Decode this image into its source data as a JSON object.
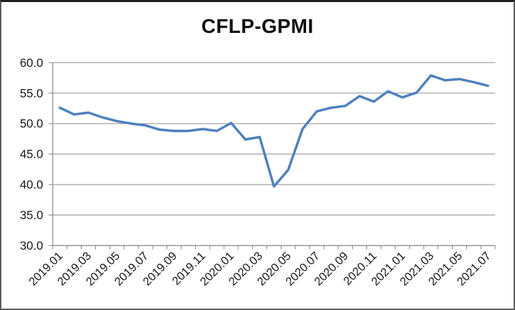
{
  "chart_data": {
    "type": "line",
    "title": "CFLP-GPMI",
    "xlabel": "",
    "ylabel": "",
    "ylim": [
      30,
      60
    ],
    "y_tick_step": 5,
    "y_tick_labels": [
      "60.0",
      "55.0",
      "50.0",
      "45.0",
      "40.0",
      "35.0",
      "30.0"
    ],
    "x": [
      "2019.01",
      "2019.02",
      "2019.03",
      "2019.04",
      "2019.05",
      "2019.06",
      "2019.07",
      "2019.08",
      "2019.09",
      "2019.10",
      "2019.11",
      "2019.12",
      "2020.01",
      "2020.02",
      "2020.03",
      "2020.04",
      "2020.05",
      "2020.06",
      "2020.07",
      "2020.08",
      "2020.09",
      "2020.10",
      "2020.11",
      "2020.12",
      "2021.01",
      "2021.02",
      "2021.03",
      "2021.04",
      "2021.05",
      "2021.06",
      "2021.07"
    ],
    "x_tick_labels": [
      "2019.01",
      "2019.03",
      "2019.05",
      "2019.07",
      "2019.09",
      "2019.11",
      "2020.01",
      "2020.03",
      "2020.05",
      "2020.07",
      "2020.09",
      "2020.11",
      "2021.01",
      "2021.03",
      "2021.05",
      "2021.07"
    ],
    "series": [
      {
        "name": "CFLP-GPMI",
        "values": [
          52.6,
          51.5,
          51.8,
          51.0,
          50.4,
          50.0,
          49.7,
          49.0,
          48.8,
          48.8,
          49.1,
          48.8,
          50.1,
          47.4,
          47.8,
          39.7,
          42.4,
          49.1,
          52.0,
          52.6,
          52.9,
          54.5,
          53.6,
          55.3,
          54.3,
          55.1,
          57.9,
          57.1,
          57.3,
          56.8,
          56.2
        ]
      }
    ],
    "legend": "none",
    "grid": "horizontal",
    "colors": {
      "line": "#4F81BD",
      "gridline": "#8c8c8c",
      "axis": "#808080",
      "tick_text": "#1a1a1a",
      "background": "#ffffff"
    }
  }
}
